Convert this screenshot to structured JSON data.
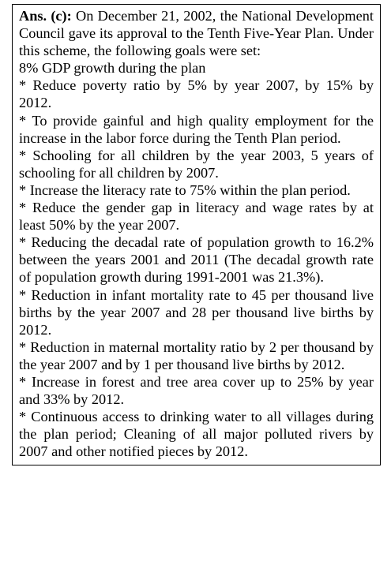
{
  "answer": {
    "label": "Ans. (c):",
    "intro": "On December 21, 2002, the National Development Council gave its approval to the Tenth Five-Year Plan. Under this scheme, the following goals were set:",
    "goals": [
      "8% GDP growth during the plan",
      "* Reduce poverty ratio by 5% by year 2007, by 15% by 2012.",
      "* To provide gainful and high quality employment for the increase in the labor force during the Tenth Plan period.",
      "* Schooling for all children by the year 2003, 5 years of schooling for all children by 2007.",
      "* Increase the literacy rate to 75% within the plan period.",
      "* Reduce the gender gap in literacy and wage rates by at least 50% by the year 2007.",
      "* Reducing the decadal rate of population growth to 16.2% between the years 2001 and 2011 (The decadal growth rate of population growth during 1991-2001 was 21.3%).",
      "* Reduction in infant mortality rate to 45 per thousand live births by the year 2007 and 28 per thousand live births by 2012.",
      "* Reduction in maternal mortality ratio by 2 per thousand by the year 2007 and by 1 per thousand live births by 2012.",
      "* Increase in forest and tree area cover up to 25% by year and 33% by 2012.",
      "* Continuous access to drinking water to all villages during the plan period; Cleaning of all major polluted rivers by 2007 and other notified pieces by 2012."
    ]
  }
}
